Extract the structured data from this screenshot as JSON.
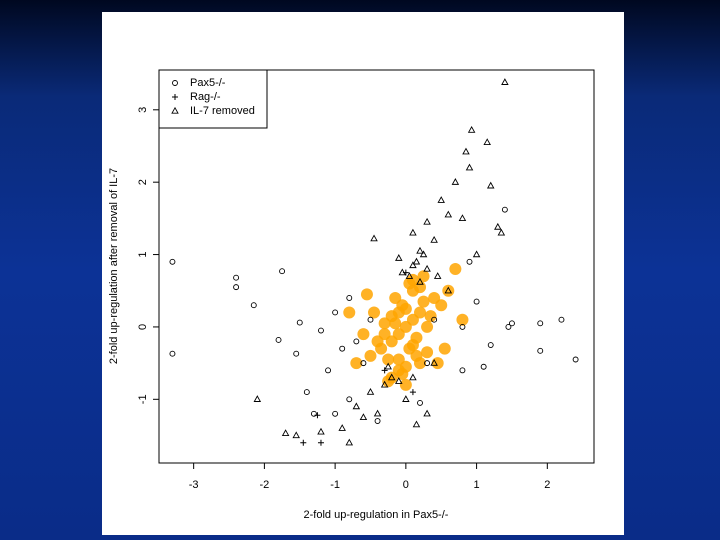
{
  "chart_data": {
    "type": "scatter",
    "xlabel": "2-fold up-regulation in Pax5-/-",
    "ylabel": "2-fold up-regulation after removal of IL-7",
    "xlim": [
      -3.49,
      2.66
    ],
    "ylim": [
      -1.88,
      3.55
    ],
    "xticks": [
      -3,
      -2,
      -1,
      0,
      1,
      2
    ],
    "yticks": [
      -1,
      0,
      1,
      2,
      3
    ],
    "legend": "top-left",
    "series": [
      {
        "color": "#ffa500",
        "marker": "dot",
        "x": [
          0,
          0.1,
          -0.1,
          0.2,
          -0.2,
          0.05,
          -0.05,
          0.15,
          -0.15,
          0.3,
          -0.3,
          0.25,
          -0.25,
          0,
          0.1,
          -0.1,
          0.2,
          -0.2,
          0.35,
          -0.35,
          0.4,
          -0.4,
          0.05,
          -0.05,
          0.15,
          -0.15,
          0,
          0.3,
          -0.3,
          0.1,
          -0.1,
          0.5,
          -0.5,
          0.6,
          -0.6,
          0.45,
          -0.45,
          0.2,
          -0.2,
          0,
          0.7,
          -0.7,
          0.8,
          -0.8,
          0.25,
          -0.25,
          0.55,
          -0.55,
          0.1,
          -0.1
        ],
        "values": [
          0,
          0.1,
          -0.1,
          0.2,
          -0.2,
          -0.3,
          0.3,
          -0.4,
          0.4,
          0,
          -0.1,
          0.35,
          -0.45,
          -0.55,
          0.5,
          -0.6,
          -0.5,
          0.15,
          0.15,
          -0.3,
          0.4,
          -0.2,
          0.6,
          -0.65,
          -0.15,
          0.05,
          0.25,
          -0.35,
          0.05,
          -0.25,
          0.2,
          0.3,
          -0.4,
          0.5,
          -0.1,
          -0.5,
          0.2,
          0.55,
          -0.7,
          -0.8,
          0.8,
          -0.5,
          0.1,
          0.2,
          0.7,
          -0.75,
          -0.3,
          0.45,
          0.65,
          -0.45
        ]
      },
      {
        "name": "Pax5-/-",
        "color": "#000000",
        "marker": "circle",
        "x": [
          -3.3,
          -3.3,
          -2.4,
          -2.4,
          -2.15,
          -1.75,
          -1.8,
          -1.5,
          -1.55,
          -1.4,
          -1.2,
          -1.1,
          -1.0,
          -0.9,
          -0.8,
          -0.7,
          -0.6,
          -0.5,
          -0.8,
          -1.0,
          0.9,
          1.0,
          0.8,
          0.8,
          1.2,
          1.1,
          1.5,
          1.45,
          1.9,
          1.9,
          2.2,
          2.4,
          1.4,
          0.3,
          0.4,
          -0.4,
          0.2,
          -1.3
        ],
        "values": [
          0.9,
          -0.37,
          0.68,
          0.55,
          0.3,
          0.77,
          -0.18,
          0.06,
          -0.37,
          -0.9,
          -0.05,
          -0.6,
          0.2,
          -0.3,
          0.4,
          -0.2,
          -0.5,
          0.1,
          -1.0,
          -1.2,
          0.9,
          0.35,
          0.0,
          -0.6,
          -0.25,
          -0.55,
          0.05,
          0.0,
          0.05,
          -0.33,
          0.1,
          -0.45,
          1.62,
          -0.5,
          0.1,
          -1.3,
          -1.05,
          -1.2
        ]
      },
      {
        "name": "Rag-/-",
        "color": "#000000",
        "marker": "plus",
        "x": [
          -1.2,
          0.0,
          -0.3,
          0.1,
          -1.25,
          -1.45
        ],
        "values": [
          -1.6,
          0.75,
          -0.6,
          -0.9,
          -1.22,
          -1.6
        ]
      },
      {
        "name": "IL-7 removed",
        "color": "#000000",
        "marker": "triangle",
        "x": [
          1.4,
          0.93,
          1.15,
          0.85,
          0.9,
          0.7,
          1.2,
          0.5,
          0.6,
          0.8,
          1.3,
          0.3,
          0.4,
          -0.45,
          0.1,
          0.2,
          -0.1,
          0.1,
          0.3,
          0.05,
          0.2,
          -0.05,
          0.45,
          0.6,
          0.15,
          0.25,
          -0.2,
          -0.3,
          -0.1,
          0.1,
          -0.5,
          -0.7,
          -0.4,
          -0.9,
          -0.8,
          -1.2,
          -1.7,
          -2.1,
          -1.55,
          0.3,
          0.4,
          0.0,
          -0.6,
          1.35,
          1.0,
          -0.25,
          0.15
        ],
        "values": [
          3.38,
          2.72,
          2.55,
          2.42,
          2.2,
          2.0,
          1.95,
          1.75,
          1.55,
          1.5,
          1.38,
          1.45,
          1.2,
          1.22,
          1.3,
          1.05,
          0.95,
          0.85,
          0.8,
          0.7,
          0.62,
          0.75,
          0.7,
          0.5,
          0.9,
          1.0,
          -0.7,
          -0.8,
          -0.75,
          -0.7,
          -0.9,
          -1.1,
          -1.2,
          -1.4,
          -1.6,
          -1.45,
          -1.47,
          -1.0,
          -1.5,
          -1.2,
          -0.5,
          -1.0,
          -1.25,
          1.3,
          1.0,
          -0.55,
          -1.35
        ]
      }
    ]
  }
}
